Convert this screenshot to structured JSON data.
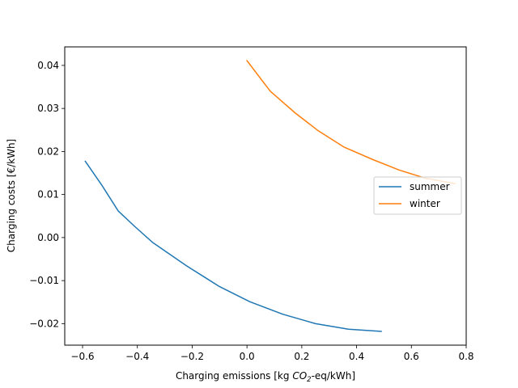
{
  "chart_data": {
    "type": "line",
    "title": "",
    "xlabel_parts": {
      "prefix": "Charging emissions [kg ",
      "co": "CO",
      "sub": "2",
      "suffix": "-eq/kWh]"
    },
    "ylabel": "Charging costs [€/kWh]",
    "xlim": [
      -0.665,
      0.8
    ],
    "ylim": [
      -0.025,
      0.0443
    ],
    "xticks": [
      {
        "value": -0.6,
        "label": "−0.6"
      },
      {
        "value": -0.4,
        "label": "−0.4"
      },
      {
        "value": -0.2,
        "label": "−0.2"
      },
      {
        "value": 0.0,
        "label": "0.0"
      },
      {
        "value": 0.2,
        "label": "0.2"
      },
      {
        "value": 0.4,
        "label": "0.4"
      },
      {
        "value": 0.6,
        "label": "0.6"
      },
      {
        "value": 0.8,
        "label": "0.8"
      }
    ],
    "yticks": [
      {
        "value": -0.02,
        "label": "−0.02"
      },
      {
        "value": -0.01,
        "label": "−0.01"
      },
      {
        "value": 0.0,
        "label": "0.00"
      },
      {
        "value": 0.01,
        "label": "0.01"
      },
      {
        "value": 0.02,
        "label": "0.02"
      },
      {
        "value": 0.03,
        "label": "0.03"
      },
      {
        "value": 0.04,
        "label": "0.04"
      }
    ],
    "grid": false,
    "legend": "center-right",
    "series": [
      {
        "name": "summer",
        "color": "#1f77b4",
        "x": [
          -0.59,
          -0.53,
          -0.47,
          -0.41,
          -0.345,
          -0.22,
          -0.1,
          0.01,
          0.13,
          0.25,
          0.37,
          0.49
        ],
        "y": [
          0.0177,
          0.0122,
          0.0062,
          0.0026,
          -0.0011,
          -0.0066,
          -0.0114,
          -0.0149,
          -0.0178,
          -0.02,
          -0.0213,
          -0.0218
        ]
      },
      {
        "name": "winter",
        "color": "#ff7f0e",
        "x": [
          0.0,
          0.085,
          0.175,
          0.26,
          0.355,
          0.46,
          0.555,
          0.65,
          0.76
        ],
        "y": [
          0.0411,
          0.034,
          0.029,
          0.0248,
          0.021,
          0.0181,
          0.0157,
          0.0138,
          0.0125
        ]
      }
    ]
  }
}
